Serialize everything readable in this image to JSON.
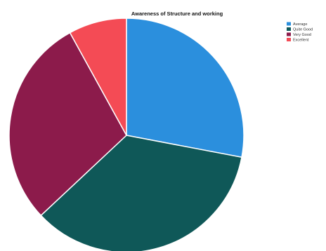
{
  "chart_data": {
    "type": "pie",
    "title": "Awareness of Structure and working",
    "categories": [
      "Average",
      "Quite Good",
      "Very Good",
      "Excellent"
    ],
    "values": [
      28,
      35,
      29,
      8
    ],
    "colors": [
      "#2b8fdd",
      "#0f5858",
      "#8c1b4b",
      "#f44b55"
    ],
    "start_angle_deg": 0,
    "direction": "clockwise",
    "legend": {
      "position": "top-right"
    }
  }
}
